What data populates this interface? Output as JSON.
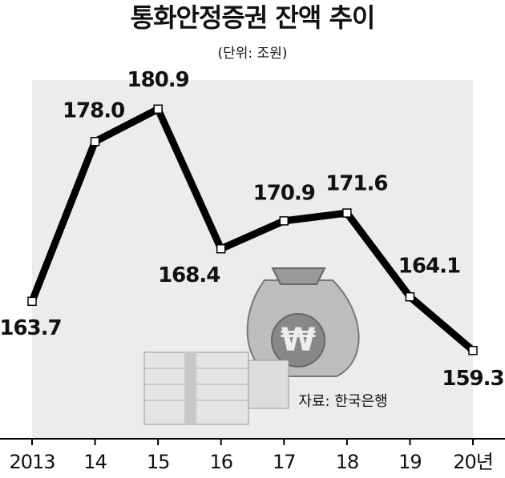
{
  "chart_data": {
    "type": "line",
    "title": "통화안정증권 잔액 추이",
    "subtitle": "(단위: 조원)",
    "source": "자료: 한국은행",
    "categories": [
      "2013",
      "14",
      "15",
      "16",
      "17",
      "18",
      "19",
      "20년"
    ],
    "values": [
      163.7,
      178.0,
      180.9,
      168.4,
      170.9,
      171.6,
      164.1,
      159.3
    ],
    "value_labels": [
      "163.7",
      "178.0",
      "180.9",
      "168.4",
      "170.9",
      "171.6",
      "164.1",
      "159.3"
    ],
    "color": "#000000",
    "ylim": [
      151.4,
      183.5
    ]
  }
}
